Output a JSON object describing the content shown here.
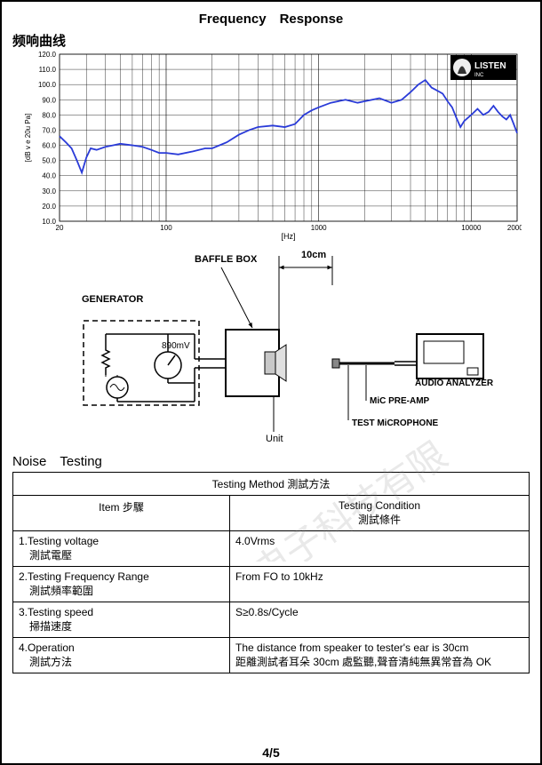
{
  "title": "Frequency　Response",
  "subtitle": "频响曲线",
  "chart": {
    "type": "line",
    "logo_text": "LISTEN",
    "logo_sub": "INC",
    "ylabel": "[dB v e 20u Pa]",
    "xlabel": "[Hz]",
    "ylim": [
      10,
      120
    ],
    "ytick_step": 10,
    "y_ticks": [
      "10.0",
      "20.0",
      "30.0",
      "40.0",
      "50.0",
      "60.0",
      "70.0",
      "80.0",
      "90.0",
      "100.0",
      "110.0",
      "120.0"
    ],
    "x_ticks_labeled": [
      20,
      100,
      1000,
      10000,
      20000
    ],
    "line_color": "#2a3bd8",
    "grid_color": "#000000",
    "background_color": "#ffffff",
    "series": [
      [
        20,
        66
      ],
      [
        22,
        62
      ],
      [
        24,
        58
      ],
      [
        26,
        50
      ],
      [
        28,
        42
      ],
      [
        30,
        52
      ],
      [
        32,
        58
      ],
      [
        35,
        57
      ],
      [
        40,
        59
      ],
      [
        45,
        60
      ],
      [
        50,
        61
      ],
      [
        60,
        60
      ],
      [
        70,
        59
      ],
      [
        80,
        57
      ],
      [
        90,
        55
      ],
      [
        100,
        55
      ],
      [
        120,
        54
      ],
      [
        150,
        56
      ],
      [
        180,
        58
      ],
      [
        200,
        58
      ],
      [
        250,
        62
      ],
      [
        300,
        67
      ],
      [
        350,
        70
      ],
      [
        400,
        72
      ],
      [
        500,
        73
      ],
      [
        600,
        72
      ],
      [
        700,
        74
      ],
      [
        800,
        80
      ],
      [
        900,
        83
      ],
      [
        1000,
        85
      ],
      [
        1200,
        88
      ],
      [
        1500,
        90
      ],
      [
        1800,
        88
      ],
      [
        2000,
        89
      ],
      [
        2500,
        91
      ],
      [
        3000,
        88
      ],
      [
        3500,
        90
      ],
      [
        4000,
        95
      ],
      [
        4500,
        100
      ],
      [
        5000,
        103
      ],
      [
        5500,
        98
      ],
      [
        6000,
        96
      ],
      [
        6500,
        94
      ],
      [
        7000,
        89
      ],
      [
        7500,
        85
      ],
      [
        8000,
        78
      ],
      [
        8500,
        72
      ],
      [
        9000,
        76
      ],
      [
        10000,
        80
      ],
      [
        11000,
        84
      ],
      [
        12000,
        80
      ],
      [
        13000,
        82
      ],
      [
        14000,
        86
      ],
      [
        15000,
        82
      ],
      [
        16000,
        79
      ],
      [
        17000,
        77
      ],
      [
        18000,
        80
      ],
      [
        19000,
        74
      ],
      [
        20000,
        68
      ]
    ]
  },
  "diagram": {
    "baffle_box": "BAFFLE BOX",
    "distance": "10cm",
    "generator": "GENERATOR",
    "voltage": "890mV",
    "unit": "Unit",
    "analyzer": "AUDIO ANALYZER",
    "preamp": "MiC PRE-AMP",
    "mic": "TEST MiCROPHONE"
  },
  "watermark": "州福声电子科技有限",
  "noise": {
    "title": "Noise　Testing",
    "header_method": "Testing Method 測試方法",
    "col_item": "Item 步驟",
    "col_cond": "Testing Condition",
    "col_cond2": "測試條件",
    "rows": [
      {
        "item_en": "1.Testing  voltage",
        "item_zh": "測試電壓",
        "cond": "4.0Vrms"
      },
      {
        "item_en": "2.Testing Frequency Range",
        "item_zh": "測試頻率範圍",
        "cond": "From FO to  10kHz"
      },
      {
        "item_en": "3.Testing  speed",
        "item_zh": "掃描速度",
        "cond": "S≥0.8s/Cycle"
      },
      {
        "item_en": "4.Operation",
        "item_zh": "測試方法",
        "cond": "The  distance from speaker to tester's ear is 30cm",
        "cond2": "距離測試者耳朵 30cm 處監聽,聲音清純無異常音為 OK"
      }
    ]
  },
  "page_number": "4/5"
}
